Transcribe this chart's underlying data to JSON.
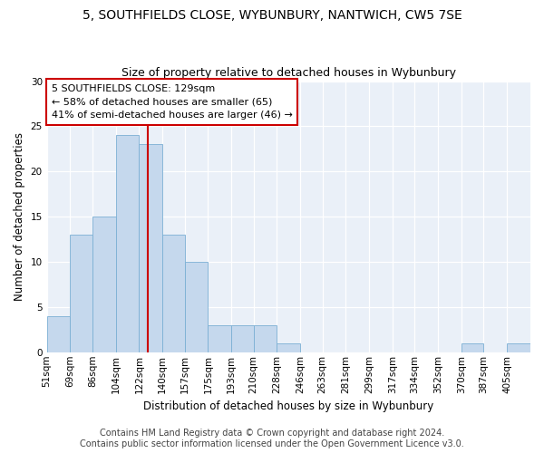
{
  "title": "5, SOUTHFIELDS CLOSE, WYBUNBURY, NANTWICH, CW5 7SE",
  "subtitle": "Size of property relative to detached houses in Wybunbury",
  "xlabel": "Distribution of detached houses by size in Wybunbury",
  "ylabel": "Number of detached properties",
  "bin_edges": [
    51,
    69,
    86,
    104,
    122,
    140,
    157,
    175,
    193,
    210,
    228,
    246,
    263,
    281,
    299,
    317,
    334,
    352,
    370,
    387,
    405
  ],
  "bin_labels": [
    "51sqm",
    "69sqm",
    "86sqm",
    "104sqm",
    "122sqm",
    "140sqm",
    "157sqm",
    "175sqm",
    "193sqm",
    "210sqm",
    "228sqm",
    "246sqm",
    "263sqm",
    "281sqm",
    "299sqm",
    "317sqm",
    "334sqm",
    "352sqm",
    "370sqm",
    "387sqm",
    "405sqm"
  ],
  "counts": [
    4,
    13,
    15,
    24,
    23,
    13,
    10,
    3,
    3,
    3,
    1,
    0,
    0,
    0,
    0,
    0,
    0,
    0,
    1,
    0,
    1
  ],
  "bar_color": "#c5d8ed",
  "bar_edge_color": "#7bafd4",
  "property_size": 129,
  "vline_color": "#cc0000",
  "annotation_text": "5 SOUTHFIELDS CLOSE: 129sqm\n← 58% of detached houses are smaller (65)\n41% of semi-detached houses are larger (46) →",
  "annotation_box_color": "#ffffff",
  "annotation_box_edge_color": "#cc0000",
  "ylim": [
    0,
    30
  ],
  "yticks": [
    0,
    5,
    10,
    15,
    20,
    25,
    30
  ],
  "bg_color": "#eaf0f8",
  "footer_line1": "Contains HM Land Registry data © Crown copyright and database right 2024.",
  "footer_line2": "Contains public sector information licensed under the Open Government Licence v3.0.",
  "title_fontsize": 10,
  "subtitle_fontsize": 9,
  "axis_label_fontsize": 8.5,
  "tick_fontsize": 7.5,
  "annotation_fontsize": 8,
  "footer_fontsize": 7
}
